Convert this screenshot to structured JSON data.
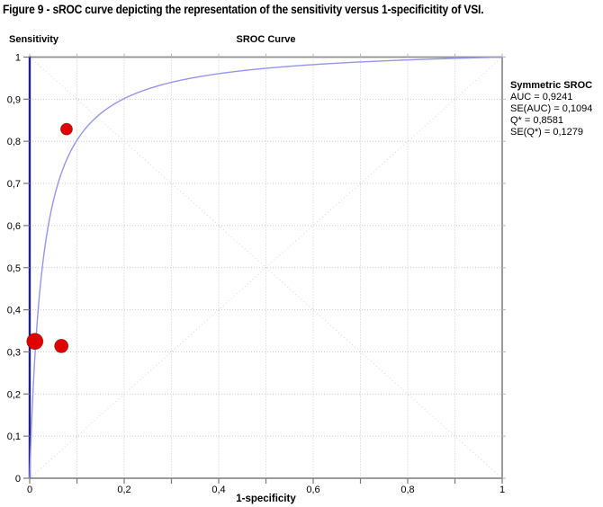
{
  "caption": "Figure 9 - sROC curve depicting the representation of the sensitivity versus 1-specificitity of VSI.",
  "chart": {
    "title": "SROC Curve",
    "y_title": "Sensitivity",
    "x_title": "1-specificity"
  },
  "legend": {
    "title": "Symmetric SROC",
    "lines": [
      "AUC = 0,9241",
      "SE(AUC) = 0,1094",
      "Q* = 0,8581",
      "SE(Q*) = 0,1279"
    ]
  },
  "chart_data": {
    "type": "scatter",
    "title": "SROC Curve",
    "xlabel": "1-specificity",
    "ylabel": "Sensitivity",
    "xlim": [
      0,
      1
    ],
    "ylim": [
      0,
      1
    ],
    "grid": "dotted grid every 0.1 on both axes, plus both dotted diagonals (0,0)-(1,1) and (0,1)-(1,0)",
    "legend_position": "right, outside plot",
    "x_tick_labels": [
      "0",
      "0,2",
      "0,4",
      "0,6",
      "0,8",
      "1"
    ],
    "x_tick_label_values": [
      0,
      0.2,
      0.4,
      0.6,
      0.8,
      1
    ],
    "y_tick_labels": [
      "0",
      "0,1",
      "0,2",
      "0,3",
      "0,4",
      "0,5",
      "0,6",
      "0,7",
      "0,8",
      "0,9",
      "1"
    ],
    "y_tick_label_values": [
      0,
      0.1,
      0.2,
      0.3,
      0.4,
      0.5,
      0.6,
      0.7,
      0.8,
      0.9,
      1
    ],
    "tick_step": 0.1,
    "study_points": [
      {
        "x": 0.011,
        "y": 0.325,
        "r": 9
      },
      {
        "x": 0.067,
        "y": 0.314,
        "r": 7.5
      },
      {
        "x": 0.078,
        "y": 0.829,
        "r": 6.5
      }
    ],
    "sroc_curve": {
      "name": "Symmetric SROC",
      "model": "sens = k*x / (1 - x + k*x), k = (Qstar/(1-Qstar))^2",
      "auc": 0.9241,
      "se_auc": 0.1094,
      "q_star": 0.8581,
      "se_q_star": 0.1279
    },
    "colors": {
      "curve": "#9595ee",
      "points_fill": "#e10000",
      "points_edge": "#5a0000",
      "y_axis": "#20208a",
      "frame": "#8f8f8f",
      "grid": "#cccccc",
      "diagonal": "#d6d6d6",
      "tick_major": "#777777",
      "tick_minor_far_side": "#bbbbbb"
    }
  }
}
